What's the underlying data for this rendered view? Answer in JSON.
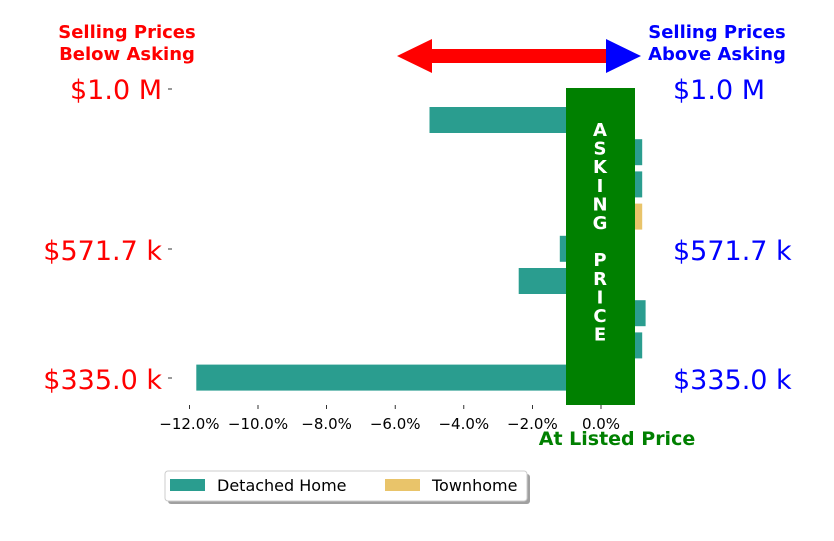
{
  "chart_data": {
    "type": "bar",
    "orientation": "horizontal",
    "headers": {
      "left": [
        "Selling Prices",
        "Below Asking"
      ],
      "right": [
        "Selling Prices",
        "Above Asking"
      ]
    },
    "price_labels": [
      "$1.0 M",
      "$571.7 k",
      "$335.0 k"
    ],
    "asking_band_text": [
      "A",
      "S",
      "K",
      "I",
      "N",
      "G",
      "",
      "P",
      "R",
      "I",
      "C",
      "E"
    ],
    "xlabel": "At Listed Price",
    "xticks": [
      "−12.0%",
      "−10.0%",
      "−8.0%",
      "−6.0%",
      "−4.0%",
      "−2.0%",
      "0.0%"
    ],
    "xlim": [
      -12.4,
      1.3
    ],
    "bars": [
      {
        "series": "Detached Home",
        "value": -5.0
      },
      {
        "series": "Detached Home",
        "value": 1.2
      },
      {
        "series": "Detached Home",
        "value": 1.2
      },
      {
        "series": "Townhome",
        "value": 1.2
      },
      {
        "series": "Detached Home",
        "value": -1.2
      },
      {
        "series": "Detached Home",
        "value": -2.4
      },
      {
        "series": "Detached Home",
        "value": 1.3
      },
      {
        "series": "Detached Home",
        "value": 1.2
      },
      {
        "series": "Detached Home",
        "value": -11.8
      }
    ],
    "series": [
      {
        "name": "Detached Home",
        "color": "#2a9d8f"
      },
      {
        "name": "Townhome",
        "color": "#e9c46a"
      }
    ],
    "colors": {
      "below": "#ff0000",
      "above": "#0000ff",
      "asking": "#008000"
    },
    "legend_position": "bottom-left",
    "grid": false
  }
}
